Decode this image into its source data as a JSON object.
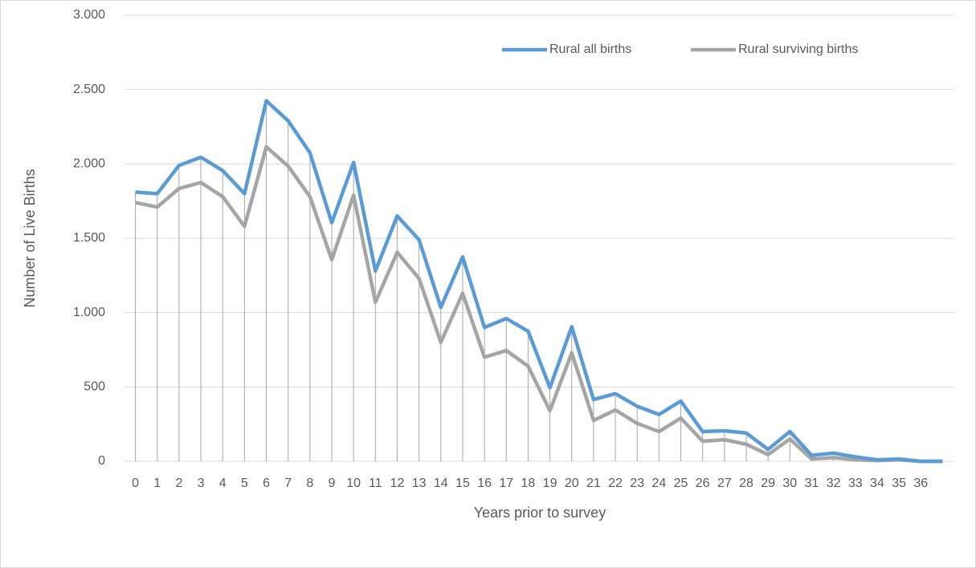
{
  "chart_data": {
    "type": "line",
    "x_label": "Years prior to survey",
    "y_label": "Number of Live Births",
    "categories": [
      "0",
      "1",
      "2",
      "3",
      "4",
      "5",
      "6",
      "7",
      "8",
      "9",
      "10",
      "11",
      "12",
      "13",
      "14",
      "15",
      "16",
      "17",
      "18",
      "19",
      "20",
      "21",
      "22",
      "23",
      "24",
      "25",
      "26",
      "27",
      "28",
      "29",
      "30",
      "31",
      "32",
      "33",
      "34",
      "35",
      "36",
      null
    ],
    "series": [
      {
        "name": "Rural all births",
        "color": "#5b9bd5",
        "values": [
          1810,
          1800,
          1990,
          2045,
          1955,
          1800,
          2425,
          2290,
          2075,
          1605,
          2010,
          1280,
          1650,
          1490,
          1035,
          1375,
          900,
          960,
          875,
          495,
          905,
          415,
          455,
          370,
          315,
          405,
          200,
          205,
          190,
          80,
          200,
          40,
          55,
          30,
          10,
          15,
          0,
          0
        ]
      },
      {
        "name": "Rural surviving births",
        "color": "#a5a5a5",
        "values": [
          1740,
          1710,
          1835,
          1875,
          1780,
          1580,
          2115,
          1985,
          1780,
          1355,
          1790,
          1070,
          1405,
          1230,
          800,
          1130,
          700,
          745,
          640,
          340,
          730,
          275,
          345,
          255,
          200,
          290,
          135,
          145,
          115,
          45,
          150,
          15,
          25,
          10,
          5,
          10,
          0,
          0
        ]
      }
    ],
    "ylim": [
      0,
      3000
    ],
    "yticks": [
      0,
      500,
      {
        "value": 1000,
        "label": "1.000"
      },
      {
        "value": 1500,
        "label": "1.500"
      },
      {
        "value": 2000,
        "label": "2.000"
      },
      {
        "value": 2500,
        "label": "2.500"
      },
      {
        "value": 3000,
        "label": "3.000"
      }
    ],
    "grid": true,
    "drop_lines": true,
    "legend": "top-right"
  }
}
